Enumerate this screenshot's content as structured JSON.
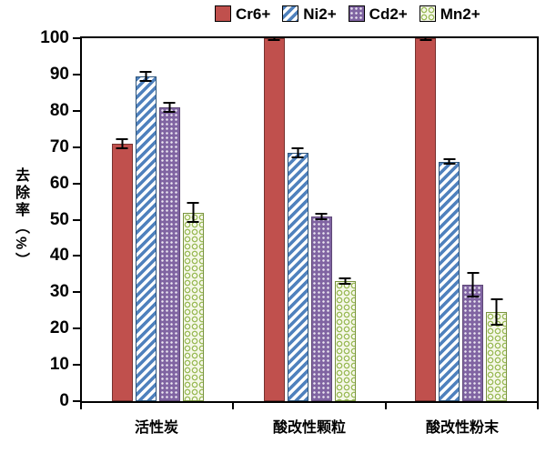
{
  "chart_data": {
    "type": "bar",
    "title": "",
    "xlabel": "",
    "ylabel": "去除率（%）",
    "ylim": [
      0,
      100
    ],
    "yticks": [
      0,
      10,
      20,
      30,
      40,
      50,
      60,
      70,
      80,
      90,
      100
    ],
    "grid": false,
    "legend_position": "top",
    "categories": [
      "活性炭",
      "酸改性颗粒",
      "酸改性粉末"
    ],
    "series": [
      {
        "name": "Cr6+",
        "pattern": "solid",
        "color": "#C0504D",
        "border": "#76322F",
        "values": [
          71,
          100,
          100
        ],
        "errors": [
          1.5,
          0.8,
          0.8
        ]
      },
      {
        "name": "Ni2+",
        "pattern": "diagonal",
        "color": "#4F81BD",
        "border": "#2E5479",
        "values": [
          89.5,
          68.5,
          66
        ],
        "errors": [
          1.5,
          1.5,
          0.8
        ]
      },
      {
        "name": "Cd2+",
        "pattern": "dots",
        "color": "#8064A2",
        "border": "#5E4876",
        "values": [
          81,
          51,
          32
        ],
        "errors": [
          1.5,
          1,
          3.5
        ]
      },
      {
        "name": "Mn2+",
        "pattern": "circles",
        "color": "#9BBB59",
        "border": "#7A9440",
        "bg": "#F5F7E8",
        "values": [
          52,
          33,
          24.5
        ],
        "errors": [
          2.8,
          1,
          3.8
        ]
      }
    ]
  }
}
